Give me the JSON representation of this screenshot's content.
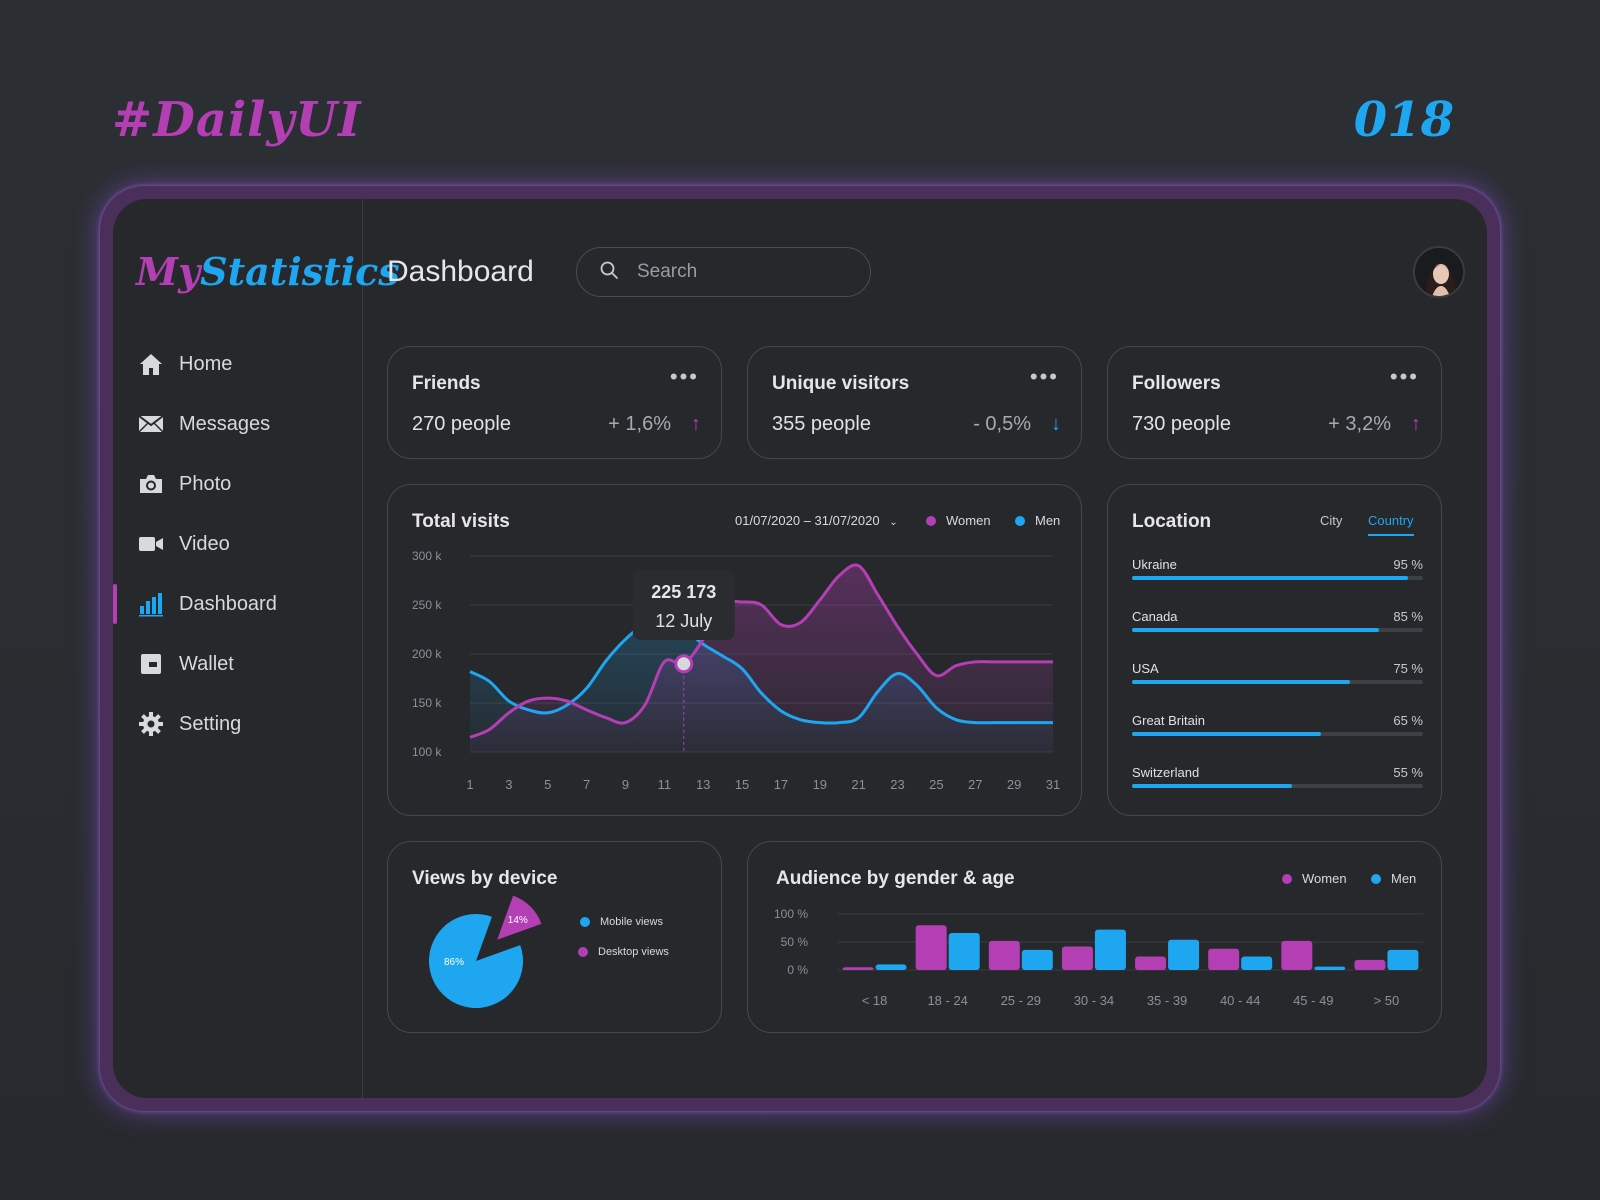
{
  "shot": {
    "tag": "#DailyUI",
    "number": "018"
  },
  "brand": {
    "my": "My",
    "statistics": "Statistics"
  },
  "nav": [
    {
      "label": "Home",
      "icon": "home-icon"
    },
    {
      "label": "Messages",
      "icon": "mail-icon"
    },
    {
      "label": "Photo",
      "icon": "camera-icon"
    },
    {
      "label": "Video",
      "icon": "video-icon"
    },
    {
      "label": "Dashboard",
      "icon": "bar-chart-icon",
      "active": true
    },
    {
      "label": "Wallet",
      "icon": "wallet-icon"
    },
    {
      "label": "Setting",
      "icon": "gear-icon"
    }
  ],
  "header": {
    "title": "Dashboard",
    "search_placeholder": "Search"
  },
  "stats": [
    {
      "title": "Friends",
      "value": "270 people",
      "delta": "+ 1,6%",
      "direction": "up"
    },
    {
      "title": "Unique visitors",
      "value": "355 people",
      "delta": "- 0,5%",
      "direction": "down"
    },
    {
      "title": "Followers",
      "value": "730 people",
      "delta": "+ 3,2%",
      "direction": "up"
    }
  ],
  "colors": {
    "women": "#b43fb5",
    "men": "#1ea7f0"
  },
  "total_visits": {
    "title": "Total visits",
    "date_range": "01/07/2020 – 31/07/2020",
    "legend": {
      "women": "Women",
      "men": "Men"
    },
    "tooltip": {
      "value": "225 173",
      "date": "12 July",
      "day": 12
    }
  },
  "location": {
    "title": "Location",
    "tabs": [
      "City",
      "Country"
    ],
    "active_tab": "Country",
    "rows": [
      {
        "name": "Ukraine",
        "label": "95 %",
        "value": 95
      },
      {
        "name": "Canada",
        "label": "85 %",
        "value": 85
      },
      {
        "name": "USA",
        "label": "75 %",
        "value": 75
      },
      {
        "name": "Great Britain",
        "label": "65 %",
        "value": 65
      },
      {
        "name": "Switzerland",
        "label": "55 %",
        "value": 55
      }
    ]
  },
  "device": {
    "title": "Views by device",
    "legend": [
      "Mobile views",
      "Desktop views"
    ]
  },
  "audience": {
    "title": "Audience by gender & age",
    "legend": {
      "women": "Women",
      "men": "Men"
    }
  },
  "chart_data": [
    {
      "type": "area",
      "title": "Total visits",
      "x": [
        1,
        2,
        3,
        4,
        5,
        6,
        7,
        8,
        9,
        10,
        11,
        12,
        13,
        14,
        15,
        16,
        17,
        18,
        19,
        20,
        21,
        22,
        23,
        24,
        25,
        26,
        27,
        28,
        29,
        30,
        31
      ],
      "x_ticks": [
        "1",
        "3",
        "5",
        "7",
        "9",
        "11",
        "13",
        "15",
        "17",
        "19",
        "21",
        "23",
        "25",
        "27",
        "29",
        "31"
      ],
      "y_ticks": [
        "100 k",
        "150 k",
        "200 k",
        "250 k",
        "300 k"
      ],
      "ylim": [
        100,
        300
      ],
      "series": [
        {
          "name": "Women",
          "values": [
            115,
            123,
            140,
            152,
            155,
            152,
            143,
            135,
            130,
            148,
            192,
            190,
            215,
            250,
            253,
            250,
            230,
            232,
            255,
            280,
            290,
            260,
            228,
            200,
            178,
            188,
            192,
            192,
            192,
            192,
            192
          ]
        },
        {
          "name": "Men",
          "values": [
            182,
            172,
            152,
            143,
            140,
            148,
            165,
            193,
            215,
            230,
            230,
            225,
            210,
            198,
            185,
            160,
            142,
            133,
            130,
            130,
            135,
            162,
            180,
            168,
            145,
            133,
            130,
            130,
            130,
            130,
            130
          ]
        }
      ],
      "grid": true
    },
    {
      "type": "pie",
      "title": "Views by device",
      "categories": [
        "Mobile views",
        "Desktop views"
      ],
      "values": [
        86,
        14
      ],
      "labels": [
        "86%",
        "14%"
      ]
    },
    {
      "type": "bar",
      "title": "Audience by gender & age",
      "categories": [
        "< 18",
        "18 - 24",
        "25 - 29",
        "30 - 34",
        "35 - 39",
        "40 - 44",
        "45 - 49",
        "> 50"
      ],
      "y_ticks": [
        "0 %",
        "50 %",
        "100 %"
      ],
      "ylim": [
        0,
        100
      ],
      "series": [
        {
          "name": "Women",
          "values": [
            5,
            80,
            52,
            42,
            24,
            38,
            52,
            18
          ]
        },
        {
          "name": "Men",
          "values": [
            10,
            66,
            36,
            72,
            54,
            24,
            6,
            36
          ]
        }
      ]
    }
  ]
}
